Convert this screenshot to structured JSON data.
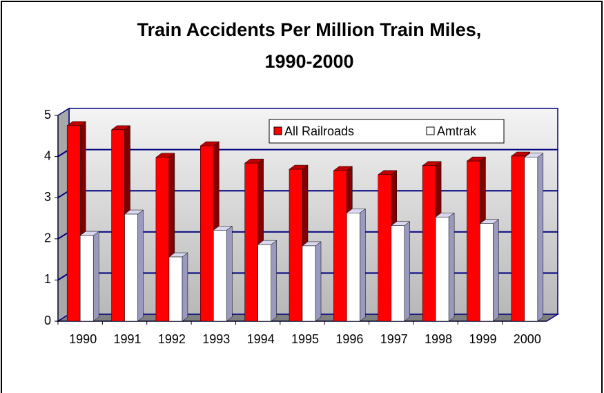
{
  "chart_data": {
    "type": "bar3d",
    "title": "Train Accidents Per Million Train Miles,",
    "subtitle": "1990-2000",
    "categories": [
      "1990",
      "1991",
      "1992",
      "1993",
      "1994",
      "1995",
      "1996",
      "1997",
      "1998",
      "1999",
      "2000"
    ],
    "series": [
      {
        "name": "All Railroads",
        "color": "#ff0000",
        "values": [
          4.75,
          4.65,
          3.98,
          4.26,
          3.84,
          3.69,
          3.66,
          3.56,
          3.78,
          3.89,
          4.01
        ]
      },
      {
        "name": "Amtrak",
        "color": "#ffffff",
        "values": [
          2.08,
          2.6,
          1.56,
          2.21,
          1.86,
          1.83,
          2.63,
          2.32,
          2.53,
          2.37,
          3.98
        ]
      }
    ],
    "ylim": [
      0,
      5
    ],
    "yticks": [
      0,
      1,
      2,
      3,
      4,
      5
    ],
    "grid": true,
    "legend": "top-right"
  }
}
